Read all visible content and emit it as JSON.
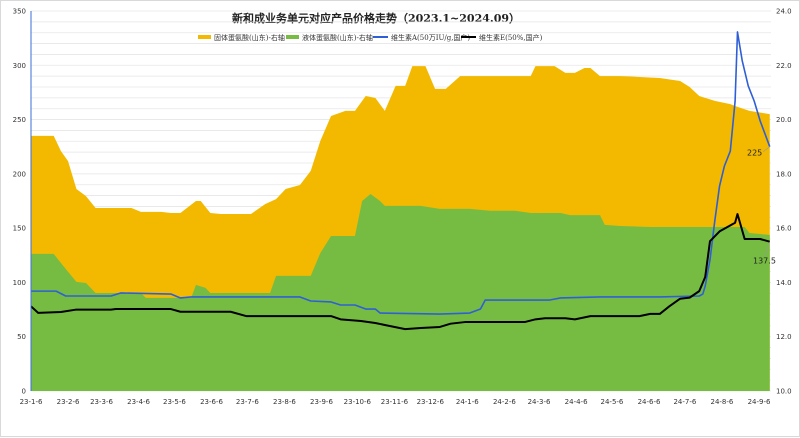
{
  "chart_data": {
    "type": "area+line",
    "title": "新和成业务单元对应产品价格走势（2023.1~2024.09）",
    "x_ticks": [
      "23-1-6",
      "23-2-6",
      "23-3-6",
      "23-4-6",
      "23-5-6",
      "23-6-6",
      "23-7-6",
      "23-8-6",
      "23-9-6",
      "23-10-6",
      "23-11-6",
      "23-12-6",
      "24-1-6",
      "24-2-6",
      "24-3-6",
      "24-4-6",
      "24-5-6",
      "24-6-6",
      "24-7-6",
      "24-8-6",
      "24-9-6"
    ],
    "x_tick_dates": [
      "2023-01-06",
      "2023-02-06",
      "2023-03-06",
      "2023-04-06",
      "2023-05-06",
      "2023-06-06",
      "2023-07-06",
      "2023-08-06",
      "2023-09-06",
      "2023-10-06",
      "2023-11-06",
      "2023-12-06",
      "2024-01-06",
      "2024-02-06",
      "2024-03-06",
      "2024-04-06",
      "2024-05-06",
      "2024-06-06",
      "2024-07-06",
      "2024-08-06",
      "2024-09-06"
    ],
    "y_left": {
      "range": [
        0,
        350
      ],
      "ticks": [
        "0",
        "50",
        "100",
        "150",
        "200",
        "250",
        "300",
        "350"
      ]
    },
    "y_right": {
      "range": [
        10,
        24
      ],
      "ticks": [
        "10.0",
        "12.0",
        "14.0",
        "16.0",
        "18.0",
        "20.0",
        "22.0",
        "24.0"
      ]
    },
    "grid": true,
    "legend_position": "top",
    "series": [
      {
        "name": "固体蛋氨酸(山东)-右轴",
        "kind": "area",
        "axis": "right",
        "color": "#f2b900",
        "points": [
          [
            "2023-01-06",
            19.4
          ],
          [
            "2023-01-25",
            19.4
          ],
          [
            "2023-01-31",
            18.84
          ],
          [
            "2023-02-06",
            18.47
          ],
          [
            "2023-02-13",
            17.44
          ],
          [
            "2023-02-21",
            17.18
          ],
          [
            "2023-03-01",
            16.74
          ],
          [
            "2023-03-31",
            16.74
          ],
          [
            "2023-04-08",
            16.6
          ],
          [
            "2023-04-25",
            16.6
          ],
          [
            "2023-05-03",
            16.56
          ],
          [
            "2023-05-11",
            16.56
          ],
          [
            "2023-05-24",
            17.0
          ],
          [
            "2023-05-28",
            17.0
          ],
          [
            "2023-06-05",
            16.56
          ],
          [
            "2023-06-14",
            16.52
          ],
          [
            "2023-07-09",
            16.52
          ],
          [
            "2023-07-21",
            16.89
          ],
          [
            "2023-07-30",
            17.07
          ],
          [
            "2023-08-07",
            17.44
          ],
          [
            "2023-08-19",
            17.59
          ],
          [
            "2023-08-28",
            18.11
          ],
          [
            "2023-09-05",
            19.21
          ],
          [
            "2023-09-14",
            20.13
          ],
          [
            "2023-09-26",
            20.32
          ],
          [
            "2023-10-04",
            20.32
          ],
          [
            "2023-10-13",
            20.87
          ],
          [
            "2023-10-21",
            20.8
          ],
          [
            "2023-10-29",
            20.32
          ],
          [
            "2023-11-07",
            21.24
          ],
          [
            "2023-11-15",
            21.24
          ],
          [
            "2023-11-21",
            21.97
          ],
          [
            "2023-12-02",
            21.97
          ],
          [
            "2023-12-10",
            21.13
          ],
          [
            "2023-12-19",
            21.13
          ],
          [
            "2023-12-31",
            21.6
          ],
          [
            "2024-02-28",
            21.6
          ],
          [
            "2024-03-03",
            21.97
          ],
          [
            "2024-03-19",
            21.97
          ],
          [
            "2024-03-28",
            21.72
          ],
          [
            "2024-04-05",
            21.72
          ],
          [
            "2024-04-13",
            21.9
          ],
          [
            "2024-04-18",
            21.9
          ],
          [
            "2024-04-26",
            21.6
          ],
          [
            "2024-05-13",
            21.6
          ],
          [
            "2024-05-29",
            21.57
          ],
          [
            "2024-06-15",
            21.53
          ],
          [
            "2024-07-02",
            21.42
          ],
          [
            "2024-07-10",
            21.2
          ],
          [
            "2024-07-18",
            20.87
          ],
          [
            "2024-07-31",
            20.69
          ],
          [
            "2024-08-13",
            20.57
          ],
          [
            "2024-08-17",
            20.5
          ],
          [
            "2024-08-29",
            20.32
          ],
          [
            "2024-09-15",
            20.2
          ]
        ]
      },
      {
        "name": "液体蛋氨酸(山东)-右轴",
        "kind": "area",
        "axis": "right",
        "color": "#76bc43",
        "points": [
          [
            "2023-01-06",
            15.05
          ],
          [
            "2023-01-25",
            15.05
          ],
          [
            "2023-02-04",
            14.5
          ],
          [
            "2023-02-13",
            14.02
          ],
          [
            "2023-02-21",
            13.98
          ],
          [
            "2023-03-01",
            13.61
          ],
          [
            "2023-04-08",
            13.61
          ],
          [
            "2023-04-12",
            13.43
          ],
          [
            "2023-05-20",
            13.43
          ],
          [
            "2023-05-24",
            13.91
          ],
          [
            "2023-06-01",
            13.8
          ],
          [
            "2023-06-05",
            13.61
          ],
          [
            "2023-07-25",
            13.61
          ],
          [
            "2023-07-30",
            14.24
          ],
          [
            "2023-08-28",
            14.24
          ],
          [
            "2023-09-05",
            15.08
          ],
          [
            "2023-09-14",
            15.71
          ],
          [
            "2023-10-04",
            15.71
          ],
          [
            "2023-10-10",
            17.0
          ],
          [
            "2023-10-17",
            17.26
          ],
          [
            "2023-10-25",
            17.0
          ],
          [
            "2023-10-29",
            16.82
          ],
          [
            "2023-11-28",
            16.82
          ],
          [
            "2023-12-14",
            16.71
          ],
          [
            "2024-01-08",
            16.71
          ],
          [
            "2024-01-25",
            16.64
          ],
          [
            "2024-02-15",
            16.64
          ],
          [
            "2024-02-28",
            16.56
          ],
          [
            "2024-03-24",
            16.56
          ],
          [
            "2024-04-01",
            16.48
          ],
          [
            "2024-04-26",
            16.48
          ],
          [
            "2024-04-30",
            16.12
          ],
          [
            "2024-05-13",
            16.08
          ],
          [
            "2024-06-07",
            16.04
          ],
          [
            "2024-08-25",
            16.04
          ],
          [
            "2024-08-29",
            15.82
          ],
          [
            "2024-09-15",
            15.75
          ]
        ]
      },
      {
        "name": "维生素A(50万IU/g,国产)",
        "kind": "line",
        "axis": "left",
        "color": "#2f5fd6",
        "points": [
          [
            "2023-01-06",
            92
          ],
          [
            "2023-01-27",
            92
          ],
          [
            "2023-02-04",
            87.5
          ],
          [
            "2023-03-14",
            87.5
          ],
          [
            "2023-03-22",
            90.3
          ],
          [
            "2023-05-03",
            89.3
          ],
          [
            "2023-05-11",
            85.7
          ],
          [
            "2023-05-20",
            86.6
          ],
          [
            "2023-08-19",
            86.6
          ],
          [
            "2023-08-28",
            82.9
          ],
          [
            "2023-09-14",
            82
          ],
          [
            "2023-09-22",
            79.2
          ],
          [
            "2023-10-04",
            79.2
          ],
          [
            "2023-10-13",
            75.5
          ],
          [
            "2023-10-21",
            75.5
          ],
          [
            "2023-10-25",
            71.8
          ],
          [
            "2023-12-14",
            70.9
          ],
          [
            "2024-01-08",
            71.8
          ],
          [
            "2024-01-17",
            75.5
          ],
          [
            "2024-01-21",
            83.8
          ],
          [
            "2024-03-15",
            83.8
          ],
          [
            "2024-03-24",
            85.7
          ],
          [
            "2024-04-26",
            86.6
          ],
          [
            "2024-06-15",
            86.6
          ],
          [
            "2024-07-18",
            87.5
          ],
          [
            "2024-07-21",
            89.3
          ],
          [
            "2024-07-23",
            96.7
          ],
          [
            "2024-07-27",
            120.7
          ],
          [
            "2024-07-31",
            156.6
          ],
          [
            "2024-08-04",
            188.8
          ],
          [
            "2024-08-08",
            207
          ],
          [
            "2024-08-13",
            221
          ],
          [
            "2024-08-17",
            267
          ],
          [
            "2024-08-19",
            330.7
          ],
          [
            "2024-08-23",
            304
          ],
          [
            "2024-08-28",
            281
          ],
          [
            "2024-09-02",
            267
          ],
          [
            "2024-09-07",
            248.7
          ],
          [
            "2024-09-15",
            225
          ]
        ]
      },
      {
        "name": "维生素E(50%,国产)",
        "kind": "line",
        "axis": "left",
        "color": "#000000",
        "points": [
          [
            "2023-01-06",
            78
          ],
          [
            "2023-01-12",
            72
          ],
          [
            "2023-01-31",
            72.8
          ],
          [
            "2023-02-13",
            75
          ],
          [
            "2023-03-14",
            75
          ],
          [
            "2023-03-18",
            75.5
          ],
          [
            "2023-05-03",
            75.5
          ],
          [
            "2023-05-11",
            73
          ],
          [
            "2023-06-22",
            73
          ],
          [
            "2023-07-05",
            69
          ],
          [
            "2023-09-14",
            69
          ],
          [
            "2023-09-22",
            66
          ],
          [
            "2023-10-09",
            64.5
          ],
          [
            "2023-10-21",
            62.6
          ],
          [
            "2023-10-29",
            60.8
          ],
          [
            "2023-11-15",
            57
          ],
          [
            "2023-11-28",
            58
          ],
          [
            "2023-12-14",
            59
          ],
          [
            "2023-12-23",
            62
          ],
          [
            "2024-01-04",
            63.5
          ],
          [
            "2024-02-23",
            63.5
          ],
          [
            "2024-03-03",
            66
          ],
          [
            "2024-03-11",
            67
          ],
          [
            "2024-03-28",
            67
          ],
          [
            "2024-04-05",
            66
          ],
          [
            "2024-04-18",
            69
          ],
          [
            "2024-05-29",
            69
          ],
          [
            "2024-06-07",
            71
          ],
          [
            "2024-06-15",
            71
          ],
          [
            "2024-06-23",
            78
          ],
          [
            "2024-07-02",
            85
          ],
          [
            "2024-07-10",
            86
          ],
          [
            "2024-07-18",
            92
          ],
          [
            "2024-07-23",
            105
          ],
          [
            "2024-07-27",
            138
          ],
          [
            "2024-08-04",
            147
          ],
          [
            "2024-08-17",
            155
          ],
          [
            "2024-08-19",
            163
          ],
          [
            "2024-08-25",
            140
          ],
          [
            "2024-09-07",
            140
          ],
          [
            "2024-09-15",
            137.5
          ]
        ]
      }
    ],
    "data_labels": [
      {
        "series": "维生素A(50万IU/g,国产)",
        "text": "225"
      },
      {
        "series": "维生素E(50%,国产)",
        "text": "137.5"
      }
    ]
  }
}
